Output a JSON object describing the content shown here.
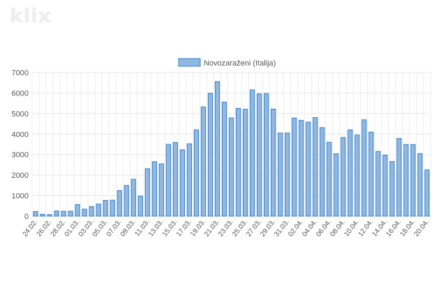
{
  "logo": {
    "text": "klix"
  },
  "chart_data": {
    "type": "bar",
    "series": [
      {
        "name": "Novozaraženi (Italija)",
        "color": "#8fb9e2",
        "border_color": "#3a7fc4",
        "values": [
          221,
          93,
          78,
          250,
          238,
          240,
          566,
          342,
          466,
          587,
          769,
          778,
          1247,
          1492,
          1797,
          977,
          2313,
          2651,
          2547,
          3497,
          3590,
          3233,
          3526,
          4207,
          5322,
          5986,
          6557,
          5560,
          4789,
          5249,
          5210,
          6153,
          5959,
          5974,
          5217,
          4050,
          4053,
          4782,
          4668,
          4585,
          4805,
          4316,
          3599,
          3039,
          3836,
          4204,
          3951,
          4694,
          4092,
          3153,
          2972,
          2667,
          3786,
          3493,
          3491,
          3047,
          2256
        ]
      }
    ],
    "categories": [
      "24.02.",
      "25.02.",
      "26.02.",
      "27.02.",
      "28.02.",
      "29.02.",
      "01.03.",
      "02.03.",
      "03.03.",
      "04.03.",
      "05.03.",
      "06.03.",
      "07.03.",
      "08.03.",
      "09.03.",
      "10.03.",
      "11.03.",
      "12.03.",
      "13.03.",
      "14.03.",
      "15.03.",
      "16.03.",
      "17.03.",
      "18.03.",
      "19.03.",
      "20.03.",
      "21.03.",
      "22.03.",
      "23.03.",
      "24.03.",
      "25.03.",
      "26.03.",
      "27.03.",
      "28.03.",
      "29.03.",
      "30.03.",
      "31.03.",
      "01.04.",
      "02.04.",
      "03.04.",
      "04.04.",
      "05.04.",
      "06.04.",
      "07.04.",
      "08.04.",
      "09.04.",
      "10.04.",
      "11.04.",
      "12.04.",
      "13.04.",
      "14.04.",
      "15.04.",
      "16.04.",
      "17.04.",
      "18.04.",
      "19.04.",
      "20.04."
    ],
    "x_tick_labels": [
      "24.02.",
      "26.02.",
      "28.02.",
      "01.03.",
      "03.03.",
      "05.03.",
      "07.03.",
      "09.03.",
      "11.03.",
      "13.03.",
      "15.03.",
      "17.03.",
      "19.03.",
      "21.03.",
      "23.03.",
      "25.03.",
      "27.03.",
      "29.03.",
      "31.03.",
      "02.04.",
      "04.04.",
      "06.04.",
      "08.04.",
      "10.04.",
      "12.04.",
      "14.04.",
      "16.04.",
      "18.04.",
      "20.04."
    ],
    "y_ticks": [
      0,
      1000,
      2000,
      3000,
      4000,
      5000,
      6000,
      7000
    ],
    "ylim": [
      0,
      7000
    ],
    "grid": true,
    "legend_position": "top-center",
    "title": "",
    "xlabel": "",
    "ylabel": ""
  }
}
